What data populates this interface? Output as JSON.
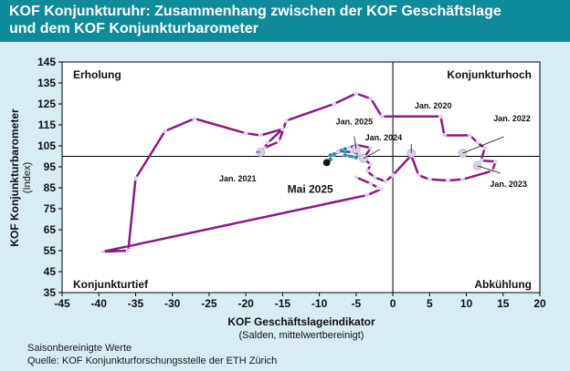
{
  "header": {
    "title_line1": "KOF Konjunkturuhr: Zusammenhang zwischen der KOF Geschäftslage",
    "title_line2": "und dem KOF Konjunkturbarometer"
  },
  "footer": {
    "note": "Saisonbereinigte Werte",
    "source": "Quelle: KOF Konjunkturforschungsstelle der ETH Zürich"
  },
  "colors": {
    "header": "#0f8b9b",
    "background": "#d8ecf3",
    "line": "#8b1a7e",
    "recent": "#1f8fa0",
    "marker": "#d9d2e6"
  },
  "chart_data": {
    "type": "line",
    "xlabel": "KOF Geschäftslageindikator",
    "xlabel_sub": "(Salden, mittelwertbereinigt)",
    "ylabel": "KOF Konjunkturbarometer",
    "ylabel_sub": "(Index)",
    "xlim": [
      -45,
      20
    ],
    "ylim": [
      35,
      145
    ],
    "xticks": [
      -45,
      -40,
      -35,
      -30,
      -25,
      -20,
      -15,
      -10,
      -5,
      0,
      5,
      10,
      15,
      20
    ],
    "yticks": [
      35,
      45,
      55,
      65,
      75,
      85,
      95,
      105,
      115,
      125,
      135,
      145
    ],
    "reference_lines": {
      "x": 0,
      "y": 100
    },
    "quadrants": {
      "top_left": "Erholung",
      "top_right": "Konjunkturhoch",
      "bottom_left": "Konjunkturtief",
      "bottom_right": "Abkühlung"
    },
    "series": [
      {
        "values": [
          [
            -5,
            90
          ],
          [
            -3,
            87
          ],
          [
            -2,
            85
          ],
          [
            -1.5,
            84.5
          ],
          [
            -3.5,
            81.5
          ],
          [
            -39.5,
            54.5
          ],
          [
            -36,
            55
          ],
          [
            -35,
            89.5
          ],
          [
            -31,
            112
          ],
          [
            -27,
            118
          ],
          [
            -20,
            111
          ],
          [
            -18,
            110
          ],
          [
            -15,
            113
          ],
          [
            -17,
            106.5
          ],
          [
            -18,
            102
          ],
          [
            -17.5,
            104
          ],
          [
            -15.5,
            107
          ],
          [
            -14.5,
            117
          ],
          [
            -8,
            125
          ],
          [
            -5,
            130
          ],
          [
            -3,
            127.5
          ],
          [
            -1.5,
            119
          ],
          [
            6.5,
            119
          ],
          [
            7,
            110
          ],
          [
            10.5,
            110
          ],
          [
            11.5,
            106.5
          ],
          [
            12.5,
            104
          ],
          [
            12,
            98
          ],
          [
            14,
            97.5
          ],
          [
            13.5,
            93
          ],
          [
            9.5,
            89
          ],
          [
            7.5,
            88.5
          ],
          [
            5,
            89
          ],
          [
            3.5,
            91
          ],
          [
            2.5,
            100.5
          ],
          [
            0,
            91
          ],
          [
            -1,
            88
          ],
          [
            -2.5,
            90
          ],
          [
            -3.5,
            93
          ],
          [
            -3,
            96
          ],
          [
            -4,
            99
          ],
          [
            -3,
            104
          ],
          [
            -5,
            105.5
          ],
          [
            -6,
            104
          ],
          [
            -7.5,
            102.5
          ],
          [
            -5.5,
            102
          ],
          [
            -4.5,
            101
          ],
          [
            -5,
            99.5
          ]
        ]
      },
      {
        "values": [
          [
            -5,
            99.5
          ],
          [
            -6.5,
            100.5
          ],
          [
            -6.5,
            103.5
          ],
          [
            -8,
            101
          ],
          [
            -8.5,
            100.5
          ],
          [
            -8.5,
            98.5
          ],
          [
            -9,
            97
          ]
        ]
      }
    ],
    "highlight_points": [
      {
        "label": "Jan. 2020",
        "x": 2.5,
        "y": 101.5
      },
      {
        "label": "Jan. 2021",
        "x": -18,
        "y": 102
      },
      {
        "label": "Jan. 2022",
        "x": 9.5,
        "y": 101.5
      },
      {
        "label": "Jan. 2023",
        "x": 11.5,
        "y": 95.5
      },
      {
        "label": "Jan. 2024",
        "x": -4,
        "y": 99
      },
      {
        "label": "Jan. 2025",
        "x": -5,
        "y": 103.5
      },
      {
        "label": "Mai 2025",
        "x": -9,
        "y": 97
      }
    ]
  }
}
